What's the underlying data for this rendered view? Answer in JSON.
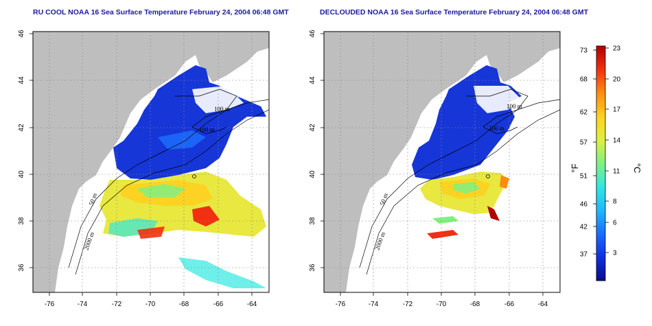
{
  "panels": [
    {
      "id": "left",
      "title": "RU COOL NOAA 16 Sea Surface Temperature February 24, 2004 06:48 GMT",
      "contour_labels": [
        "100 m",
        "100 m",
        "50 m",
        "2000 m"
      ]
    },
    {
      "id": "right",
      "title": "DECLOUDED NOAA 16 Sea Surface Temperature February 24, 2004 06:48 GMT",
      "contour_labels": [
        "100 m",
        "100 m",
        "50 m",
        "2000 m"
      ]
    }
  ],
  "axes": {
    "lon_ticks": [
      "-76",
      "-74",
      "-72",
      "-70",
      "-68",
      "-66",
      "-64"
    ],
    "lat_ticks": [
      "36",
      "38",
      "40",
      "42",
      "44",
      "46"
    ]
  },
  "colorbar": {
    "fahrenheit_ticks": [
      "73",
      "68",
      "62",
      "57",
      "51",
      "46",
      "42",
      "37"
    ],
    "celsius_ticks": [
      "23",
      "20",
      "17",
      "14",
      "11",
      "8",
      "6",
      "3"
    ],
    "unit_f": "°F",
    "unit_c": "°C",
    "colors": [
      "#0a0a8c",
      "#1030e0",
      "#1a6cff",
      "#20b8ff",
      "#30e8e0",
      "#80f080",
      "#e0f040",
      "#ffd020",
      "#ff8c10",
      "#f03010",
      "#b00000"
    ]
  },
  "colors": {
    "land": "#bebebe",
    "title": "#1a1aa0"
  }
}
